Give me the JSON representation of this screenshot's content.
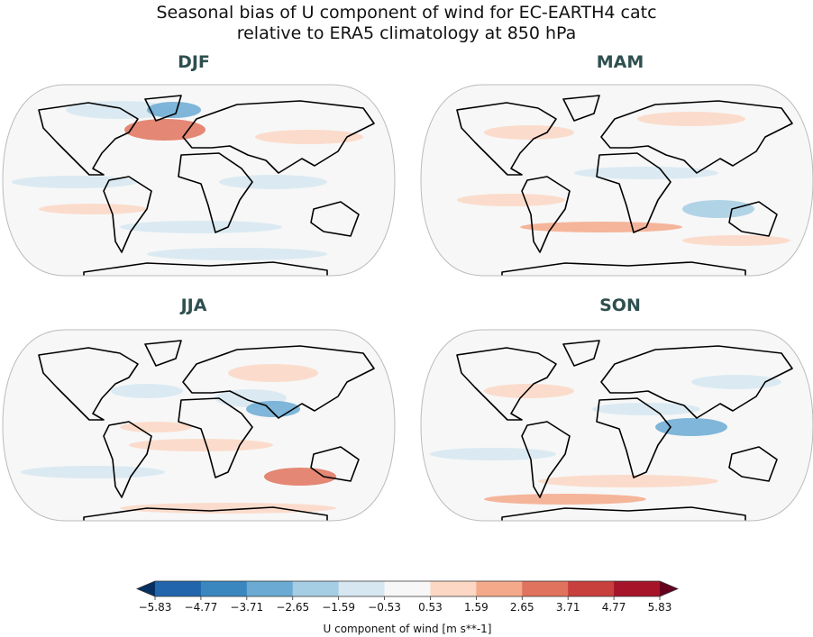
{
  "title_lines": [
    "Seasonal bias of U component of wind for EC-EARTH4 catc",
    "relative to ERA5 climatology at 850 hPa"
  ],
  "panels": [
    {
      "title": "DJF"
    },
    {
      "title": "MAM"
    },
    {
      "title": "JJA"
    },
    {
      "title": "SON"
    }
  ],
  "colorbar": {
    "label": "U component of wind [m s**-1]",
    "lim": [
      -5.83,
      5.83
    ],
    "ticks": [
      {
        "value": -5.83,
        "label": "−5.83"
      },
      {
        "value": -4.77,
        "label": "−4.77"
      },
      {
        "value": -3.71,
        "label": "−3.71"
      },
      {
        "value": -2.65,
        "label": "−2.65"
      },
      {
        "value": -1.59,
        "label": "−1.59"
      },
      {
        "value": -0.53,
        "label": "−0.53"
      },
      0.53,
      1.59,
      2.65,
      3.71,
      4.77,
      5.83
    ],
    "colors": [
      "#2166ac",
      "#3a87c0",
      "#6aaad3",
      "#a5cde3",
      "#d6e7f1",
      "#f7f7f7",
      "#fbd7c4",
      "#f4a98a",
      "#e0735d",
      "#c8403d",
      "#a51429"
    ],
    "extend_colors": [
      "#053061",
      "#67001f"
    ]
  }
}
